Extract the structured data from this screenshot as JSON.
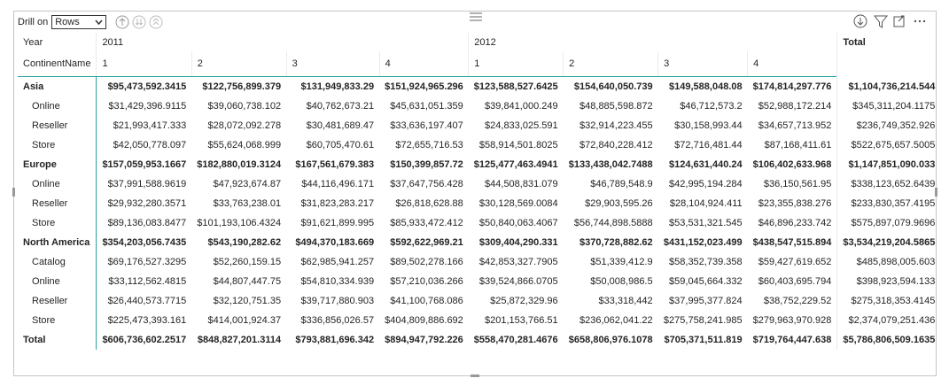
{
  "toolbar": {
    "drill_label": "Drill on",
    "drill_option": "Rows"
  },
  "table": {
    "corner": [
      "Year",
      "ContinentName"
    ],
    "years": [
      {
        "label": "2011",
        "quarters": [
          "1",
          "2",
          "3",
          "4"
        ]
      },
      {
        "label": "2012",
        "quarters": [
          "1",
          "2",
          "3",
          "4"
        ]
      }
    ],
    "total_header": "Total",
    "groups": [
      {
        "label": "Asia",
        "values": [
          "$95,473,592.3415",
          "$122,756,899.379",
          "$131,949,833.29",
          "$151,924,965.296",
          "$123,588,527.6425",
          "$154,640,050.739",
          "$149,588,048.08",
          "$174,814,297.776",
          "$1,104,736,214.544"
        ],
        "children": [
          {
            "label": "Online",
            "values": [
              "$31,429,396.9115",
              "$39,060,738.102",
              "$40,762,673.21",
              "$45,631,051.359",
              "$39,841,000.249",
              "$48,885,598.872",
              "$46,712,573.2",
              "$52,988,172.214",
              "$345,311,204.1175"
            ]
          },
          {
            "label": "Reseller",
            "values": [
              "$21,993,417.333",
              "$28,072,092.278",
              "$30,481,689.47",
              "$33,636,197.407",
              "$24,833,025.591",
              "$32,914,223.455",
              "$30,158,993.44",
              "$34,657,713.952",
              "$236,749,352.926"
            ]
          },
          {
            "label": "Store",
            "values": [
              "$42,050,778.097",
              "$55,624,068.999",
              "$60,705,470.61",
              "$72,655,716.53",
              "$58,914,501.8025",
              "$72,840,228.412",
              "$72,716,481.44",
              "$87,168,411.61",
              "$522,675,657.5005"
            ]
          }
        ]
      },
      {
        "label": "Europe",
        "values": [
          "$157,059,953.1667",
          "$182,880,019.3124",
          "$167,561,679.383",
          "$150,399,857.72",
          "$125,477,463.4941",
          "$133,438,042.7488",
          "$124,631,440.24",
          "$106,402,633.968",
          "$1,147,851,090.033"
        ],
        "children": [
          {
            "label": "Online",
            "values": [
              "$37,991,588.9619",
              "$47,923,674.87",
              "$44,116,496.171",
              "$37,647,756.428",
              "$44,508,831.079",
              "$46,789,548.9",
              "$42,995,194.284",
              "$36,150,561.95",
              "$338,123,652.6439"
            ]
          },
          {
            "label": "Reseller",
            "values": [
              "$29,932,280.3571",
              "$33,763,238.01",
              "$31,823,283.217",
              "$26,818,628.88",
              "$30,128,569.0084",
              "$29,903,595.26",
              "$28,104,924.411",
              "$23,355,838.276",
              "$233,830,357.4195"
            ]
          },
          {
            "label": "Store",
            "values": [
              "$89,136,083.8477",
              "$101,193,106.4324",
              "$91,621,899.995",
              "$85,933,472.412",
              "$50,840,063.4067",
              "$56,744,898.5888",
              "$53,531,321.545",
              "$46,896,233.742",
              "$575,897,079.9696"
            ]
          }
        ]
      },
      {
        "label": "North America",
        "values": [
          "$354,203,056.7435",
          "$543,190,282.62",
          "$494,370,183.669",
          "$592,622,969.21",
          "$309,404,290.331",
          "$370,728,882.62",
          "$431,152,023.499",
          "$438,547,515.894",
          "$3,534,219,204.5865"
        ],
        "children": [
          {
            "label": "Catalog",
            "values": [
              "$69,176,527.3295",
              "$52,260,159.15",
              "$62,985,941.257",
              "$89,502,278.166",
              "$42,853,327.7905",
              "$51,339,412.9",
              "$58,352,739.358",
              "$59,427,619.652",
              "$485,898,005.603"
            ]
          },
          {
            "label": "Online",
            "values": [
              "$33,112,562.4815",
              "$44,807,447.75",
              "$54,810,334.939",
              "$57,210,036.266",
              "$39,524,866.0705",
              "$50,008,986.5",
              "$59,045,664.332",
              "$60,403,695.794",
              "$398,923,594.133"
            ]
          },
          {
            "label": "Reseller",
            "values": [
              "$26,440,573.7715",
              "$32,120,751.35",
              "$39,717,880.903",
              "$41,100,768.086",
              "$25,872,329.96",
              "$33,318,442",
              "$37,995,377.824",
              "$38,752,229.52",
              "$275,318,353.4145"
            ]
          },
          {
            "label": "Store",
            "values": [
              "$225,473,393.161",
              "$414,001,924.37",
              "$336,856,026.57",
              "$404,809,886.692",
              "$201,153,766.51",
              "$236,062,041.22",
              "$275,758,241.985",
              "$279,963,970.928",
              "$2,374,079,251.436"
            ]
          }
        ]
      }
    ],
    "total": {
      "label": "Total",
      "values": [
        "$606,736,602.2517",
        "$848,827,201.3114",
        "$793,881,696.342",
        "$894,947,792.226",
        "$558,470,281.4676",
        "$658,806,976.1078",
        "$705,371,511.819",
        "$719,764,447.638",
        "$5,786,806,509.1635"
      ]
    }
  }
}
